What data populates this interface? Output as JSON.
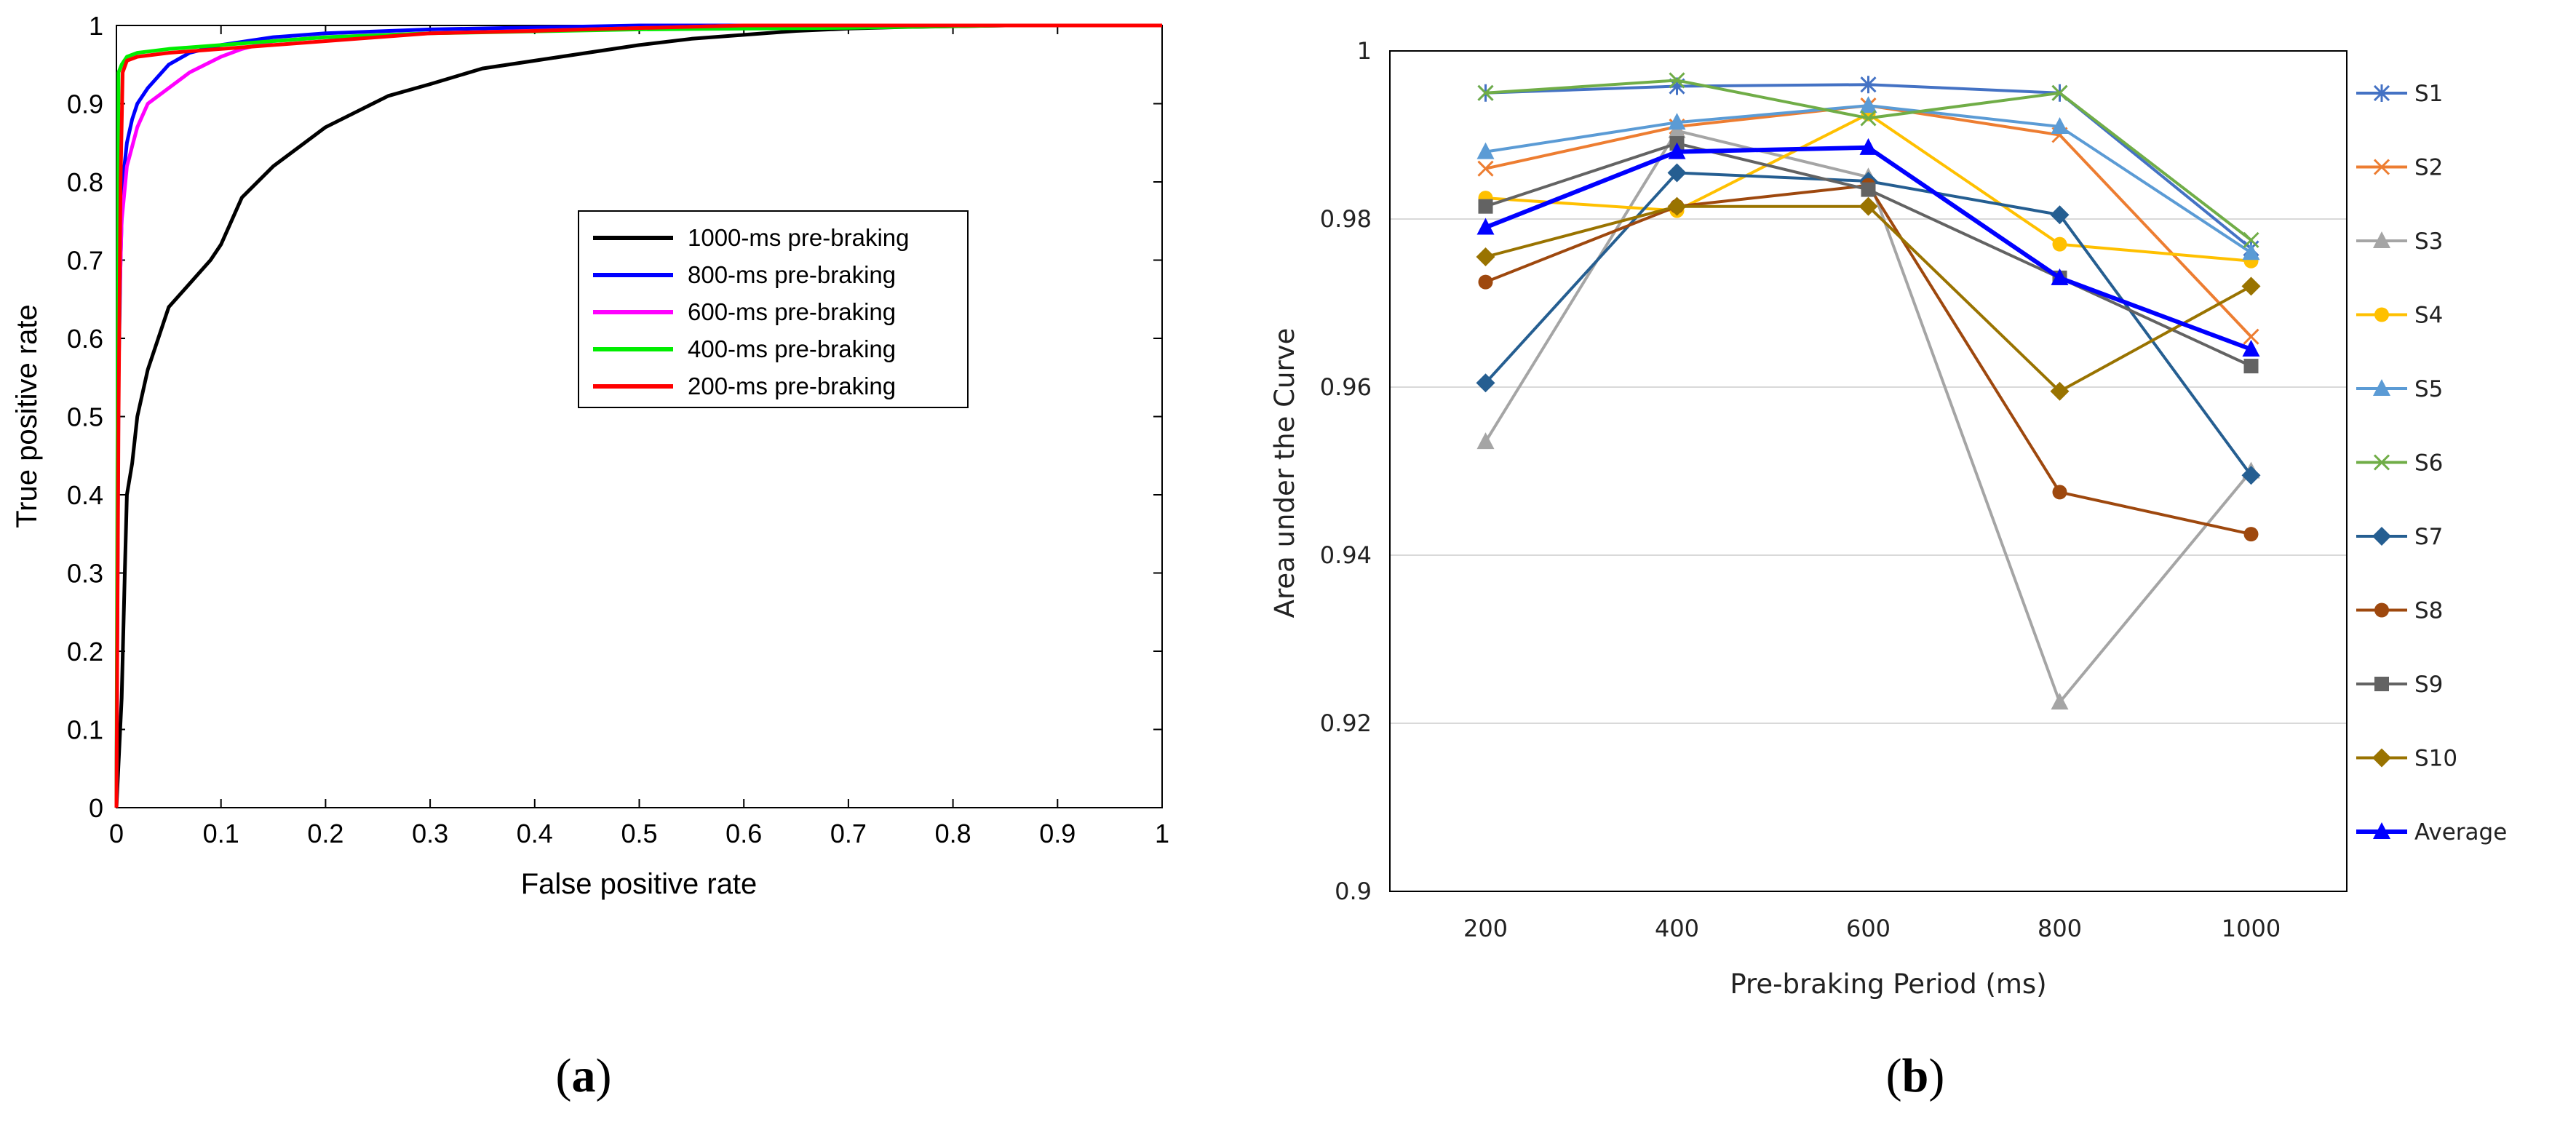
{
  "chart_data": [
    {
      "type": "line",
      "title": "",
      "caption_letter": "a",
      "xlabel": "False positive rate",
      "ylabel": "True positive rate",
      "xlim": [
        0,
        1
      ],
      "ylim": [
        0,
        1
      ],
      "xticks": [
        "0",
        "0.1",
        "0.2",
        "0.3",
        "0.4",
        "0.5",
        "0.6",
        "0.7",
        "0.8",
        "0.9",
        "1"
      ],
      "yticks": [
        "0",
        "0.1",
        "0.2",
        "0.3",
        "0.4",
        "0.5",
        "0.6",
        "0.7",
        "0.8",
        "0.9",
        "1"
      ],
      "grid": false,
      "legend_position": "center-right",
      "series": [
        {
          "name": "1000-ms pre-braking",
          "color": "#000000",
          "x": [
            0,
            0.005,
            0.008,
            0.01,
            0.015,
            0.02,
            0.03,
            0.04,
            0.05,
            0.07,
            0.09,
            0.1,
            0.12,
            0.15,
            0.18,
            0.2,
            0.23,
            0.26,
            0.3,
            0.35,
            0.4,
            0.45,
            0.5,
            0.55,
            0.6,
            0.65,
            0.7,
            0.75,
            0.8,
            0.85,
            1.0
          ],
          "y": [
            0,
            0.14,
            0.3,
            0.4,
            0.44,
            0.5,
            0.56,
            0.6,
            0.64,
            0.67,
            0.7,
            0.72,
            0.78,
            0.82,
            0.85,
            0.87,
            0.89,
            0.91,
            0.925,
            0.945,
            0.955,
            0.965,
            0.975,
            0.983,
            0.988,
            0.993,
            0.996,
            0.998,
            0.999,
            1.0,
            1.0
          ]
        },
        {
          "name": "800-ms pre-braking",
          "color": "#0000ff",
          "x": [
            0,
            0.002,
            0.004,
            0.006,
            0.01,
            0.015,
            0.02,
            0.03,
            0.05,
            0.07,
            0.1,
            0.15,
            0.2,
            0.3,
            0.5,
            1.0
          ],
          "y": [
            0,
            0.55,
            0.7,
            0.8,
            0.85,
            0.88,
            0.9,
            0.92,
            0.95,
            0.965,
            0.975,
            0.985,
            0.99,
            0.995,
            1.0,
            1.0
          ]
        },
        {
          "name": "600-ms pre-braking",
          "color": "#ff00ff",
          "x": [
            0,
            0.002,
            0.005,
            0.01,
            0.02,
            0.03,
            0.05,
            0.07,
            0.1,
            0.12,
            0.15,
            0.2,
            0.3,
            0.45,
            0.6,
            1.0
          ],
          "y": [
            0,
            0.6,
            0.75,
            0.82,
            0.87,
            0.9,
            0.92,
            0.94,
            0.96,
            0.97,
            0.98,
            0.985,
            0.99,
            0.995,
            1.0,
            1.0
          ]
        },
        {
          "name": "400-ms pre-braking",
          "color": "#00ee00",
          "x": [
            0,
            0.002,
            0.005,
            0.01,
            0.02,
            0.05,
            0.1,
            0.2,
            0.3,
            0.5,
            0.7,
            0.85,
            1.0
          ],
          "y": [
            0,
            0.94,
            0.95,
            0.96,
            0.965,
            0.97,
            0.975,
            0.985,
            0.99,
            0.995,
            0.997,
            1.0,
            1.0
          ]
        },
        {
          "name": "200-ms pre-braking",
          "color": "#ff0000",
          "x": [
            0,
            0.002,
            0.004,
            0.006,
            0.01,
            0.02,
            0.05,
            0.1,
            0.15,
            0.2,
            0.25,
            0.3,
            0.4,
            0.45,
            0.6,
            1.0
          ],
          "y": [
            0,
            0.5,
            0.8,
            0.94,
            0.955,
            0.96,
            0.965,
            0.97,
            0.975,
            0.98,
            0.985,
            0.99,
            0.993,
            0.995,
            1.0,
            1.0
          ]
        }
      ]
    },
    {
      "type": "line",
      "title": "",
      "caption_letter": "b",
      "xlabel": "Pre-braking Period (ms)",
      "ylabel": "Area under the Curve",
      "categories": [
        "200",
        "400",
        "600",
        "800",
        "1000"
      ],
      "ylim": [
        0.9,
        1
      ],
      "yticks": [
        "0.9",
        "0.92",
        "0.94",
        "0.96",
        "0.98",
        "1"
      ],
      "grid": true,
      "legend_position": "right",
      "series": [
        {
          "name": "S1",
          "color": "#4472c4",
          "marker": "star",
          "values": [
            0.995,
            0.9958,
            0.996,
            0.995,
            0.9765
          ]
        },
        {
          "name": "S2",
          "color": "#ed7d31",
          "marker": "x",
          "values": [
            0.986,
            0.991,
            0.9935,
            0.99,
            0.966
          ]
        },
        {
          "name": "S3",
          "color": "#a5a5a5",
          "marker": "triangle",
          "values": [
            0.9535,
            0.9905,
            0.985,
            0.9225,
            0.95
          ]
        },
        {
          "name": "S4",
          "color": "#ffc000",
          "marker": "circle",
          "values": [
            0.9825,
            0.981,
            0.9925,
            0.977,
            0.975
          ]
        },
        {
          "name": "S5",
          "color": "#5b9bd5",
          "marker": "triangle",
          "values": [
            0.988,
            0.9915,
            0.9935,
            0.991,
            0.976
          ]
        },
        {
          "name": "S6",
          "color": "#70ad47",
          "marker": "x",
          "values": [
            0.995,
            0.9965,
            0.992,
            0.995,
            0.9775
          ]
        },
        {
          "name": "S7",
          "color": "#255e91",
          "marker": "diamond",
          "values": [
            0.9605,
            0.9855,
            0.9845,
            0.9805,
            0.9495
          ]
        },
        {
          "name": "S8",
          "color": "#9e480e",
          "marker": "circle",
          "values": [
            0.9725,
            0.9815,
            0.984,
            0.9475,
            0.9425
          ]
        },
        {
          "name": "S9",
          "color": "#636363",
          "marker": "square",
          "values": [
            0.9815,
            0.989,
            0.9835,
            0.973,
            0.9625
          ]
        },
        {
          "name": "S10",
          "color": "#997300",
          "marker": "diamond",
          "values": [
            0.9755,
            0.9815,
            0.9815,
            0.9595,
            0.972
          ]
        },
        {
          "name": "Average",
          "color": "#0000ff",
          "marker": "triangle",
          "values": [
            0.979,
            0.988,
            0.9885,
            0.973,
            0.9645
          ]
        }
      ]
    }
  ]
}
